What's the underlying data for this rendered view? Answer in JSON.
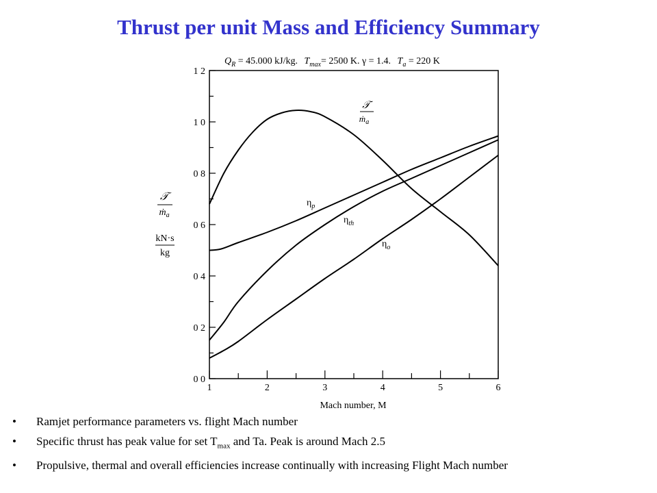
{
  "title": "Thrust per unit Mass and Efficiency Summary",
  "chart_data": {
    "type": "line",
    "caption": "Q_R = 45,000 kJ/kg,  T_max = 2500 K,  γ = 1.4,  T_a = 220 K",
    "caption_parts": {
      "q": "Q",
      "q_sub": "R",
      "q_val": " = 45.000 kJ/kg.",
      "t": "T",
      "t_sub": "max",
      "t_val": "= 2500 K. γ = 1.4.",
      "ta": "T",
      "ta_sub": "a",
      "ta_val": " = 220 K"
    },
    "xlabel": "Mach number, M",
    "ylabel_num": "𝒯",
    "ylabel_den": "ṁ",
    "ylabel_den_sub": "a",
    "ylabel_unit_num": "kN·s",
    "ylabel_unit_den": "kg",
    "xlim": [
      1,
      6
    ],
    "ylim": [
      0,
      1.2
    ],
    "x_ticks": [
      "1",
      "2",
      "3",
      "4",
      "5",
      "6"
    ],
    "y_ticks": [
      "0 0",
      "0 2",
      "0 4",
      "0 6",
      "0 8",
      "1 0",
      "1 2"
    ],
    "series": [
      {
        "name": "T/ṁa",
        "label": "𝒯",
        "label_den": "ṁ",
        "label_sub": "a",
        "x": [
          1.0,
          1.25,
          1.5,
          1.75,
          2.0,
          2.25,
          2.5,
          2.75,
          3.0,
          3.5,
          4.0,
          4.5,
          5.0,
          5.5,
          6.0
        ],
        "y": [
          0.68,
          0.8,
          0.89,
          0.96,
          1.01,
          1.035,
          1.045,
          1.04,
          1.02,
          0.95,
          0.85,
          0.74,
          0.65,
          0.56,
          0.44
        ]
      },
      {
        "name": "ηp",
        "label": "η",
        "label_sub": "p",
        "x": [
          1.0,
          1.2,
          1.5,
          2.0,
          2.5,
          3.0,
          3.5,
          4.0,
          4.5,
          5.0,
          5.5,
          6.0
        ],
        "y": [
          0.5,
          0.505,
          0.53,
          0.57,
          0.615,
          0.665,
          0.715,
          0.765,
          0.815,
          0.86,
          0.905,
          0.945
        ]
      },
      {
        "name": "ηth",
        "label": "η",
        "label_sub": "th",
        "x": [
          1.0,
          1.25,
          1.5,
          2.0,
          2.5,
          3.0,
          3.5,
          4.0,
          4.5,
          5.0,
          5.5,
          6.0
        ],
        "y": [
          0.15,
          0.22,
          0.3,
          0.42,
          0.52,
          0.6,
          0.67,
          0.73,
          0.78,
          0.83,
          0.88,
          0.93
        ]
      },
      {
        "name": "ηo",
        "label": "η",
        "label_sub": "o",
        "x": [
          1.0,
          1.25,
          1.5,
          2.0,
          2.5,
          3.0,
          3.5,
          4.0,
          4.5,
          5.0,
          5.5,
          6.0
        ],
        "y": [
          0.08,
          0.11,
          0.145,
          0.23,
          0.31,
          0.39,
          0.465,
          0.545,
          0.62,
          0.7,
          0.785,
          0.87
        ]
      }
    ]
  },
  "bullets": [
    {
      "text": "Ramjet performance parameters vs. flight Mach number"
    },
    {
      "pre": "Specific thrust has peak value for set T",
      "sub": "max",
      "post": " and Ta. Peak is around Mach 2.5"
    },
    {
      "text": "Propulsive, thermal and overall efficiencies increase continually with increasing Flight Mach number"
    }
  ],
  "bullet_glyph": "•"
}
